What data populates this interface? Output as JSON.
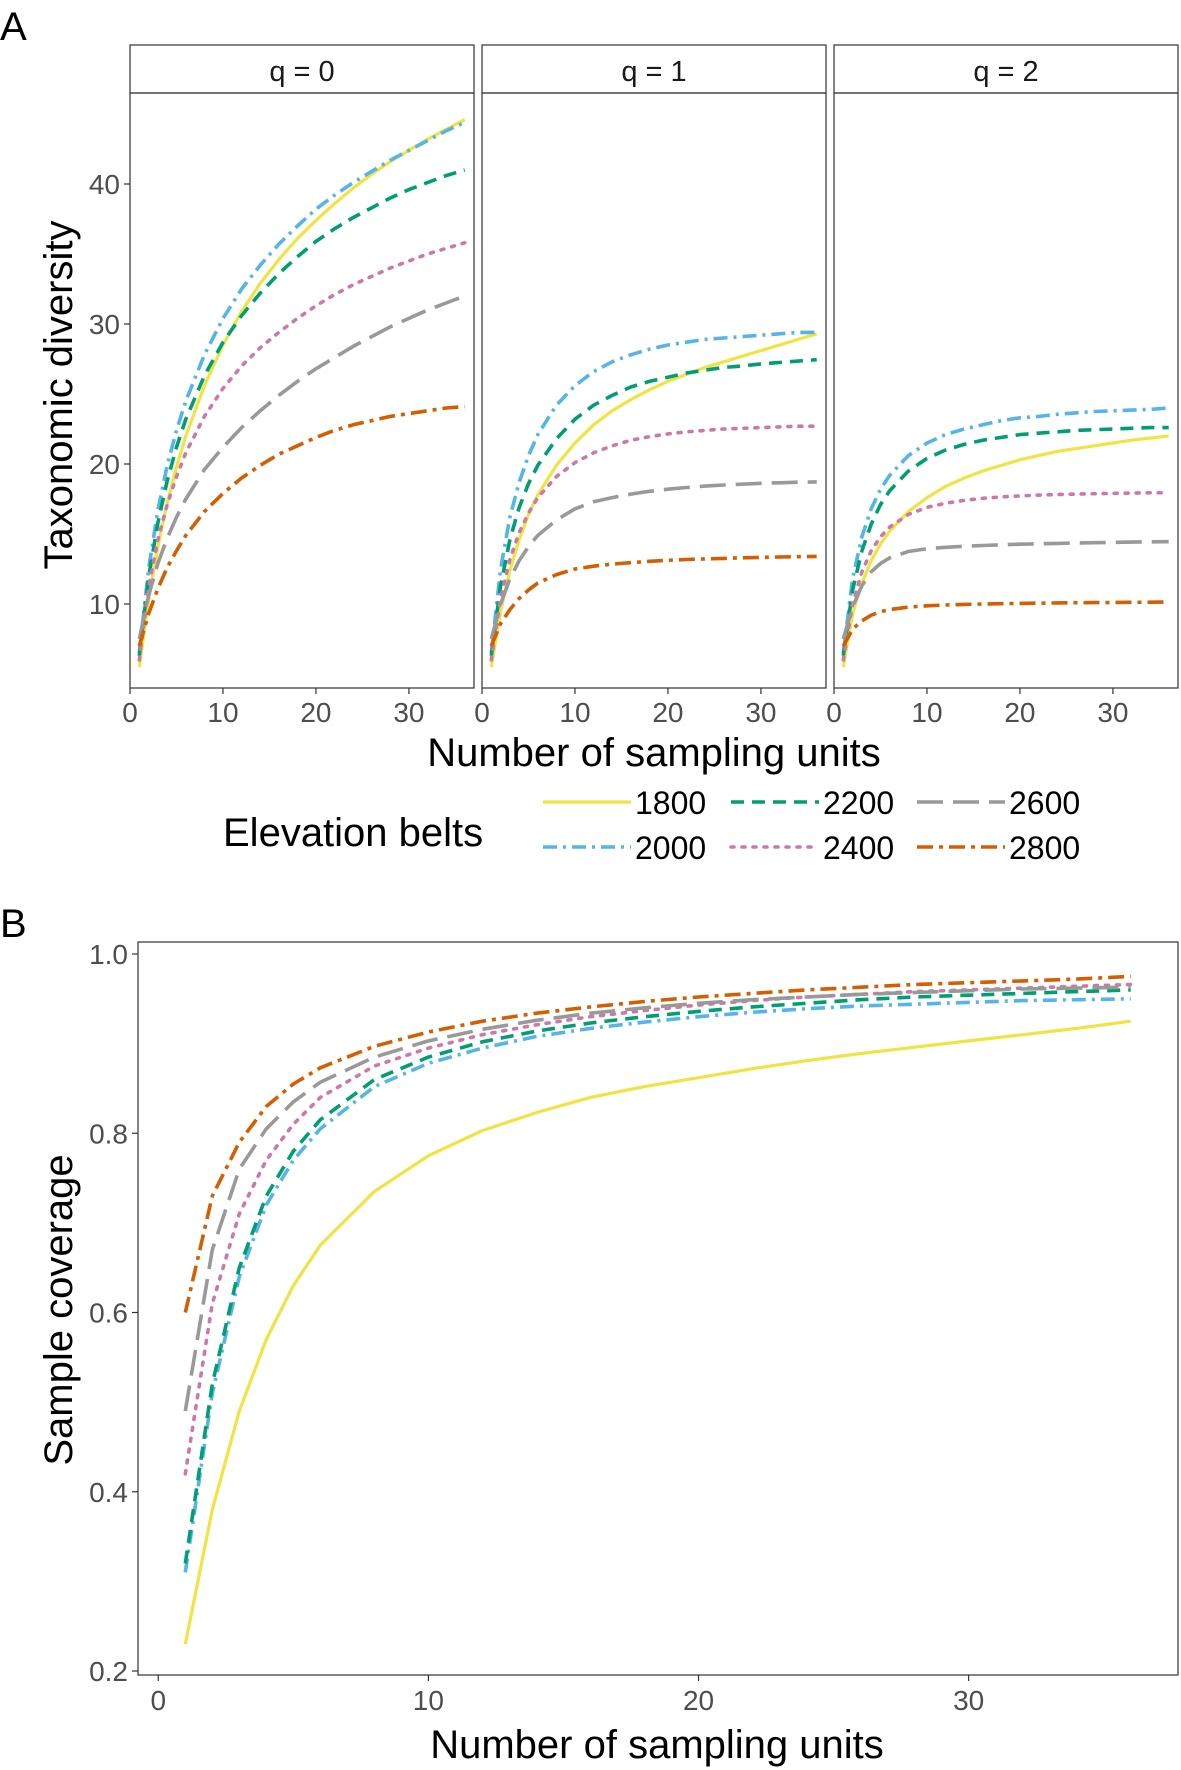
{
  "colors": {
    "1800": "#F0E442",
    "2000": "#56B4E9",
    "2200": "#009E73",
    "2400": "#CC79A7",
    "2600": "#999999",
    "2800": "#D55E00"
  },
  "chart_data": [
    {
      "id": "A",
      "panel_label": "A",
      "type": "line",
      "facets": [
        "q = 0",
        "q = 1",
        "q = 2"
      ],
      "xlabel": "Number of sampling units",
      "ylabel": "Taxonomic diversity",
      "xlim": [
        0,
        37
      ],
      "ylim": [
        4,
        46.5
      ],
      "xticks": [
        0,
        10,
        20,
        30
      ],
      "yticks": [
        10,
        20,
        30,
        40
      ],
      "x": [
        1,
        2,
        3,
        4,
        5,
        6,
        8,
        10,
        12,
        14,
        16,
        18,
        20,
        22,
        24,
        26,
        28,
        30,
        32,
        34,
        36
      ],
      "legend": {
        "title": "Elevation belts",
        "position": "bottom",
        "entries": [
          "1800",
          "2000",
          "2200",
          "2400",
          "2600",
          "2800"
        ]
      },
      "series": [
        {
          "name": "1800",
          "values_by_facet": [
            [
              5.5,
              10.3,
              14.1,
              17.2,
              19.8,
              22.0,
              25.6,
              28.5,
              30.9,
              32.9,
              34.6,
              36.1,
              37.4,
              38.6,
              39.7,
              40.7,
              41.6,
              42.4,
              43.2,
              43.9,
              44.6
            ],
            [
              5.5,
              9.5,
              12.4,
              14.6,
              16.4,
              17.8,
              19.9,
              21.5,
              22.8,
              23.8,
              24.6,
              25.3,
              25.9,
              26.4,
              26.9,
              27.3,
              27.7,
              28.1,
              28.5,
              28.9,
              29.3
            ],
            [
              5.5,
              9.3,
              11.5,
              13.1,
              14.3,
              15.2,
              16.6,
              17.6,
              18.4,
              19.0,
              19.5,
              19.9,
              20.3,
              20.6,
              20.9,
              21.1,
              21.3,
              21.5,
              21.7,
              21.85,
              22.0
            ]
          ]
        },
        {
          "name": "2000",
          "values_by_facet": [
            [
              6.5,
              12.5,
              16.7,
              19.9,
              22.4,
              24.5,
              27.8,
              30.4,
              32.5,
              34.2,
              35.7,
              37.0,
              38.2,
              39.2,
              40.1,
              40.9,
              41.7,
              42.4,
              43.1,
              43.8,
              44.4
            ],
            [
              6.5,
              12.5,
              16.2,
              18.7,
              20.6,
              22.1,
              24.2,
              25.6,
              26.6,
              27.3,
              27.8,
              28.2,
              28.5,
              28.7,
              28.9,
              29.0,
              29.1,
              29.2,
              29.3,
              29.4,
              29.4
            ],
            [
              6.5,
              11.8,
              14.8,
              16.8,
              18.2,
              19.2,
              20.6,
              21.5,
              22.1,
              22.5,
              22.8,
              23.1,
              23.3,
              23.4,
              23.55,
              23.65,
              23.75,
              23.8,
              23.85,
              23.9,
              24.0
            ]
          ]
        },
        {
          "name": "2200",
          "values_by_facet": [
            [
              6.3,
              11.9,
              15.8,
              18.8,
              21.2,
              23.2,
              26.3,
              28.7,
              30.6,
              32.2,
              33.6,
              34.8,
              35.9,
              36.8,
              37.6,
              38.3,
              39.0,
              39.6,
              40.1,
              40.6,
              41.0
            ],
            [
              6.3,
              11.3,
              14.6,
              16.9,
              18.6,
              19.9,
              21.8,
              23.2,
              24.2,
              24.9,
              25.5,
              25.9,
              26.2,
              26.5,
              26.7,
              26.9,
              27.0,
              27.15,
              27.25,
              27.35,
              27.45
            ],
            [
              6.3,
              11.0,
              13.8,
              15.7,
              17.1,
              18.1,
              19.5,
              20.4,
              21.0,
              21.4,
              21.7,
              21.9,
              22.1,
              22.2,
              22.3,
              22.4,
              22.45,
              22.5,
              22.55,
              22.6,
              22.6
            ]
          ]
        },
        {
          "name": "2400",
          "values_by_facet": [
            [
              6.0,
              11.2,
              14.6,
              17.1,
              19.1,
              20.8,
              23.4,
              25.4,
              27.0,
              28.3,
              29.4,
              30.4,
              31.3,
              32.1,
              32.8,
              33.4,
              34.0,
              34.5,
              35.0,
              35.4,
              35.8
            ],
            [
              6.0,
              10.4,
              13.2,
              15.1,
              16.5,
              17.6,
              19.1,
              20.1,
              20.8,
              21.3,
              21.7,
              21.95,
              22.15,
              22.3,
              22.4,
              22.5,
              22.55,
              22.6,
              22.65,
              22.7,
              22.7
            ],
            [
              6.0,
              10.0,
              12.3,
              13.8,
              14.8,
              15.5,
              16.4,
              16.9,
              17.2,
              17.4,
              17.55,
              17.65,
              17.72,
              17.78,
              17.82,
              17.85,
              17.88,
              17.9,
              17.92,
              17.94,
              17.95
            ]
          ]
        },
        {
          "name": "2600",
          "values_by_facet": [
            [
              7.5,
              10.6,
              12.9,
              14.7,
              16.2,
              17.5,
              19.6,
              21.2,
              22.6,
              23.8,
              24.9,
              25.9,
              26.8,
              27.6,
              28.4,
              29.1,
              29.8,
              30.4,
              31.0,
              31.5,
              32.0
            ],
            [
              7.5,
              10.0,
              11.8,
              13.1,
              14.1,
              14.9,
              16.0,
              16.8,
              17.3,
              17.6,
              17.85,
              18.05,
              18.2,
              18.32,
              18.42,
              18.5,
              18.56,
              18.62,
              18.66,
              18.7,
              18.72
            ],
            [
              7.5,
              9.8,
              11.3,
              12.3,
              12.9,
              13.3,
              13.75,
              13.95,
              14.05,
              14.12,
              14.18,
              14.23,
              14.27,
              14.3,
              14.33,
              14.36,
              14.38,
              14.4,
              14.42,
              14.44,
              14.45
            ]
          ]
        },
        {
          "name": "2800",
          "values_by_facet": [
            [
              7.0,
              9.3,
              11.1,
              12.6,
              13.8,
              14.9,
              16.6,
              17.9,
              19.0,
              19.9,
              20.7,
              21.3,
              21.9,
              22.4,
              22.8,
              23.1,
              23.4,
              23.6,
              23.8,
              24.0,
              24.1
            ],
            [
              7.0,
              8.6,
              9.6,
              10.4,
              11.0,
              11.5,
              12.1,
              12.5,
              12.7,
              12.85,
              12.95,
              13.05,
              13.12,
              13.18,
              13.22,
              13.26,
              13.3,
              13.33,
              13.36,
              13.38,
              13.4
            ],
            [
              7.0,
              8.2,
              8.8,
              9.2,
              9.45,
              9.6,
              9.78,
              9.87,
              9.93,
              9.97,
              10.0,
              10.02,
              10.04,
              10.06,
              10.08,
              10.09,
              10.1,
              10.11,
              10.12,
              10.13,
              10.14
            ]
          ]
        }
      ]
    },
    {
      "id": "B",
      "panel_label": "B",
      "type": "line",
      "xlabel": "Number of sampling units",
      "ylabel": "Sample coverage",
      "xlim": [
        -0.75,
        37.75
      ],
      "ylim": [
        0.2,
        1.0
      ],
      "xticks": [
        0,
        10,
        20,
        30
      ],
      "yticks": [
        0.2,
        0.4,
        0.6,
        0.8,
        1.0
      ],
      "x": [
        1,
        2,
        3,
        4,
        5,
        6,
        8,
        10,
        12,
        14,
        16,
        18,
        20,
        22,
        24,
        26,
        28,
        30,
        32,
        34,
        36
      ],
      "series": [
        {
          "name": "1800",
          "values": [
            0.23,
            0.38,
            0.49,
            0.57,
            0.63,
            0.675,
            0.735,
            0.775,
            0.803,
            0.823,
            0.84,
            0.852,
            0.862,
            0.872,
            0.881,
            0.889,
            0.896,
            0.903,
            0.91,
            0.917,
            0.925
          ]
        },
        {
          "name": "2000",
          "values": [
            0.31,
            0.51,
            0.64,
            0.72,
            0.77,
            0.805,
            0.852,
            0.878,
            0.895,
            0.908,
            0.917,
            0.924,
            0.93,
            0.935,
            0.939,
            0.942,
            0.944,
            0.946,
            0.948,
            0.949,
            0.95
          ]
        },
        {
          "name": "2200",
          "values": [
            0.32,
            0.52,
            0.65,
            0.73,
            0.78,
            0.815,
            0.86,
            0.885,
            0.902,
            0.914,
            0.923,
            0.93,
            0.936,
            0.941,
            0.945,
            0.949,
            0.952,
            0.954,
            0.956,
            0.958,
            0.96
          ]
        },
        {
          "name": "2400",
          "values": [
            0.42,
            0.61,
            0.71,
            0.77,
            0.81,
            0.84,
            0.875,
            0.895,
            0.91,
            0.921,
            0.93,
            0.937,
            0.943,
            0.948,
            0.952,
            0.955,
            0.958,
            0.96,
            0.962,
            0.964,
            0.966
          ]
        },
        {
          "name": "2600",
          "values": [
            0.49,
            0.67,
            0.76,
            0.805,
            0.835,
            0.857,
            0.885,
            0.903,
            0.916,
            0.926,
            0.934,
            0.94,
            0.945,
            0.949,
            0.952,
            0.955,
            0.957,
            0.959,
            0.961,
            0.962,
            0.963
          ]
        },
        {
          "name": "2800",
          "values": [
            0.6,
            0.73,
            0.79,
            0.83,
            0.855,
            0.873,
            0.897,
            0.913,
            0.925,
            0.934,
            0.941,
            0.947,
            0.952,
            0.956,
            0.96,
            0.963,
            0.966,
            0.968,
            0.97,
            0.972,
            0.975
          ]
        }
      ]
    }
  ]
}
